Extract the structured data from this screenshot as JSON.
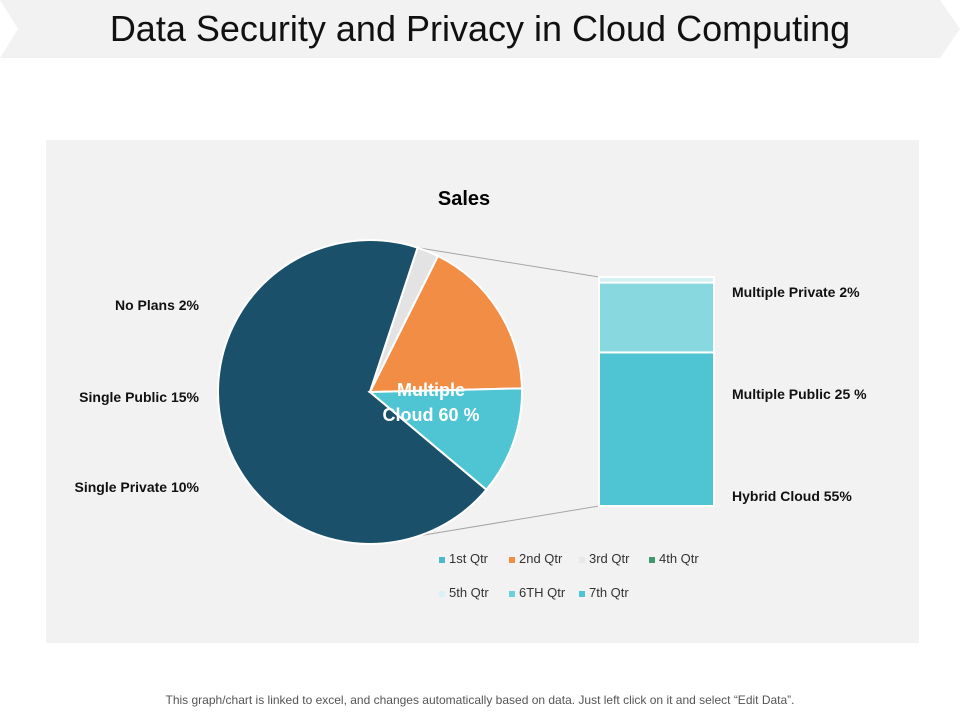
{
  "page": {
    "title": "Data Security and Privacy in Cloud Computing",
    "footnote": "This graph/chart is linked to excel, and changes automatically based on data. Just left click on it and select “Edit Data”."
  },
  "chart_data": {
    "type": "pie",
    "title": "Sales",
    "pie": {
      "slices": [
        {
          "label": "Multiple Cloud 60 %",
          "value": 60,
          "color": "#1b506a"
        },
        {
          "label": "No Plans 2%",
          "value": 2,
          "color": "#e3e3e3"
        },
        {
          "label": "Single Public 15%",
          "value": 15,
          "color": "#f28d45"
        },
        {
          "label": "Single Private 10%",
          "value": 10,
          "color": "#4fc4d2"
        }
      ]
    },
    "bar_of_pie": {
      "segments": [
        {
          "label": "Hybrid Cloud 55%",
          "value": 55,
          "color": "#4fc4d2"
        },
        {
          "label": "Multiple Public 25 %",
          "value": 25,
          "color": "#88d8e0"
        },
        {
          "label": "Multiple Private 2%",
          "value": 2,
          "color": "#d3f0f3"
        }
      ]
    },
    "legend": {
      "placement": "bottom",
      "items": [
        {
          "label": "1st Qtr",
          "color": "#4fb8c8"
        },
        {
          "label": "2nd Qtr",
          "color": "#f28d45"
        },
        {
          "label": "3rd Qtr",
          "color": "#e8e8e8"
        },
        {
          "label": "4th Qtr",
          "color": "#3e9a6a"
        },
        {
          "label": "5th Qtr",
          "color": "#d8f2f5"
        },
        {
          "label": "6TH Qtr",
          "color": "#6cd0dc"
        },
        {
          "label": "7th Qtr",
          "color": "#4fc4d2"
        }
      ]
    }
  }
}
